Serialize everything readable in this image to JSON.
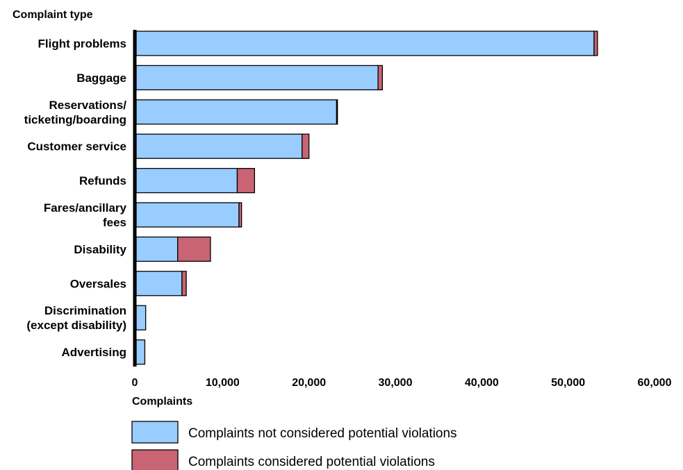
{
  "chart_data": {
    "type": "bar",
    "orientation": "horizontal",
    "stacked": true,
    "categories": [
      [
        "Flight problems"
      ],
      [
        "Baggage"
      ],
      [
        "Reservations/",
        "ticketing/boarding"
      ],
      [
        "Customer service"
      ],
      [
        "Refunds"
      ],
      [
        "Fares/ancillary",
        "fees"
      ],
      [
        "Disability"
      ],
      [
        "Oversales"
      ],
      [
        "Discrimination",
        "(except disability)"
      ],
      [
        "Advertising"
      ]
    ],
    "series": [
      {
        "name": "Complaints not considered potential violations",
        "color": "#99CCFF",
        "values": [
          53000,
          28000,
          23200,
          19200,
          11700,
          11900,
          4800,
          5300,
          1100,
          1000
        ]
      },
      {
        "name": "Complaints considered potential violations",
        "color": "#C86473",
        "values": [
          400,
          500,
          100,
          800,
          2000,
          300,
          3800,
          500,
          0,
          0
        ]
      }
    ],
    "xlabel": "Complaints",
    "ylabel": "Complaint type",
    "xlim": [
      0,
      60000
    ],
    "xticks": [
      0,
      10000,
      20000,
      30000,
      40000,
      50000,
      60000
    ],
    "xtick_labels": [
      "0",
      "10,000",
      "20,000",
      "30,000",
      "40,000",
      "50,000",
      "60,000"
    ],
    "grid": false,
    "legend_position": "bottom"
  }
}
